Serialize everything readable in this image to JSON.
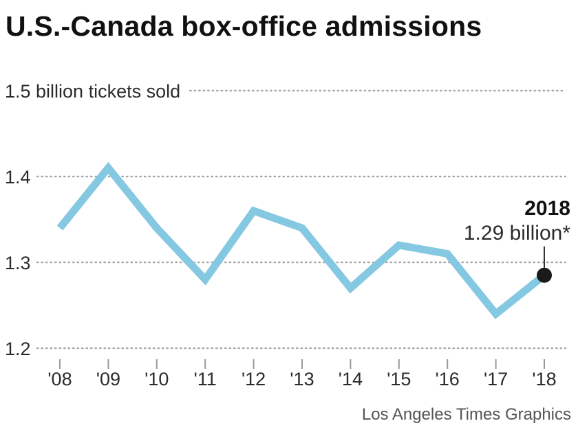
{
  "chart_data": {
    "type": "line",
    "title": "U.S.-Canada box-office admissions",
    "x": [
      "'08",
      "'09",
      "'10",
      "'11",
      "'12",
      "'13",
      "'14",
      "'15",
      "'16",
      "'17",
      "'18"
    ],
    "series": [
      {
        "values": [
          1.34,
          1.41,
          1.34,
          1.28,
          1.36,
          1.34,
          1.27,
          1.32,
          1.31,
          1.24,
          1.285
        ]
      }
    ],
    "ylim": [
      1.2,
      1.5
    ],
    "y_ticks": [
      {
        "value": 1.2,
        "label": "1.2"
      },
      {
        "value": 1.3,
        "label": "1.3"
      },
      {
        "value": 1.4,
        "label": "1.4"
      },
      {
        "value": 1.5,
        "label": "1.5 billion tickets sold"
      }
    ],
    "grid": true,
    "line_color": "#85c8e2",
    "annotation": {
      "point_index": 10,
      "year": "2018",
      "text": "1.29 billion*"
    }
  },
  "source": "Los Angeles Times Graphics"
}
